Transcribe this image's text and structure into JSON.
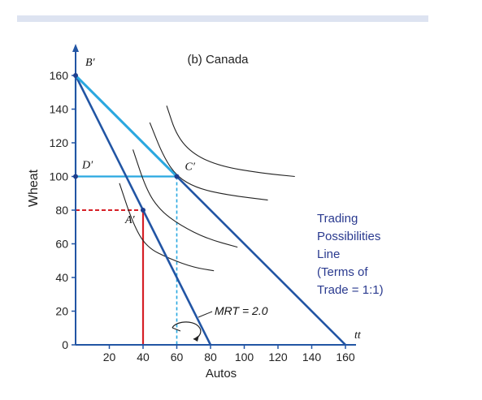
{
  "chart_data": {
    "type": "line",
    "title": "(b) Canada",
    "xlabel": "Autos",
    "ylabel": "Wheat",
    "xlim": [
      0,
      170
    ],
    "ylim": [
      0,
      165
    ],
    "x_ticks": [
      "20",
      "40",
      "60",
      "80",
      "100",
      "120",
      "140",
      "160"
    ],
    "y_ticks": [
      "0",
      "20",
      "40",
      "60",
      "80",
      "100",
      "120",
      "140",
      "160"
    ],
    "colors": {
      "ppf": "#2255a4",
      "trade_line": "#2255a4",
      "consumption_lines": "#29a8e0",
      "production_lines": "#d62027",
      "indifference": "#222222",
      "annotation": "#2a3a8f"
    },
    "series": [
      {
        "key": "ppf",
        "points": [
          [
            0,
            160
          ],
          [
            80,
            0
          ]
        ]
      },
      {
        "key": "trade_line",
        "points": [
          [
            0,
            160
          ],
          [
            160,
            0
          ]
        ]
      }
    ],
    "indifference_curves": [
      {
        "points": [
          [
            26,
            96
          ],
          [
            34,
            72
          ],
          [
            42,
            58
          ],
          [
            56,
            51
          ],
          [
            70,
            46
          ],
          [
            82,
            44
          ]
        ]
      },
      {
        "points": [
          [
            34,
            116
          ],
          [
            42,
            92
          ],
          [
            50,
            80
          ],
          [
            62,
            71
          ],
          [
            78,
            63
          ],
          [
            96,
            58
          ]
        ]
      },
      {
        "points": [
          [
            44,
            132
          ],
          [
            52,
            112
          ],
          [
            60,
            100
          ],
          [
            72,
            93
          ],
          [
            90,
            89
          ],
          [
            114,
            86
          ]
        ]
      },
      {
        "points": [
          [
            54,
            142
          ],
          [
            60,
            124
          ],
          [
            70,
            113
          ],
          [
            86,
            106
          ],
          [
            110,
            102
          ],
          [
            130,
            100
          ]
        ]
      }
    ],
    "points": [
      {
        "label": "B′",
        "x": 0,
        "y": 160
      },
      {
        "label": "C′",
        "x": 60,
        "y": 100
      },
      {
        "label": "D′",
        "x": 0,
        "y": 100
      },
      {
        "label": "A′",
        "x": 40,
        "y": 80
      }
    ],
    "annotations": {
      "trade_label_lines": [
        "Trading",
        "Possibilities",
        "Line",
        "(Terms of",
        "Trade = 1:1)"
      ],
      "mrt": "MRT = 2.0",
      "tt": "tt"
    }
  }
}
